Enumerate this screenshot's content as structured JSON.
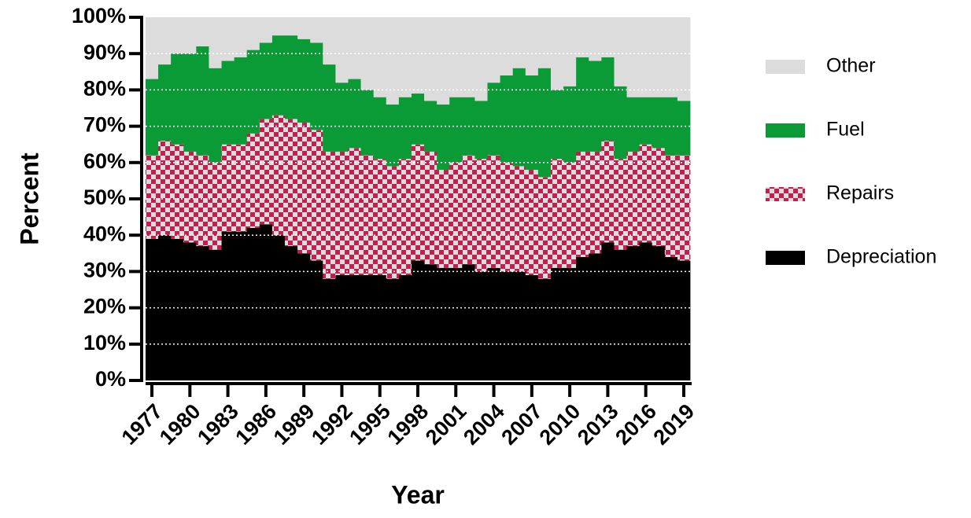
{
  "chart_data": {
    "type": "stacked-bar",
    "x_label": "Year",
    "y_label": "Percent",
    "x": [
      1977,
      1978,
      1979,
      1980,
      1981,
      1982,
      1983,
      1984,
      1985,
      1986,
      1987,
      1988,
      1989,
      1990,
      1991,
      1992,
      1993,
      1994,
      1995,
      1996,
      1997,
      1998,
      1999,
      2000,
      2001,
      2002,
      2003,
      2004,
      2005,
      2006,
      2007,
      2008,
      2009,
      2010,
      2011,
      2012,
      2013,
      2014,
      2015,
      2016,
      2017,
      2018,
      2019
    ],
    "xlim": [
      1976.5,
      2019.5
    ],
    "xticks": [
      1977,
      1980,
      1983,
      1986,
      1989,
      1992,
      1995,
      1998,
      2001,
      2004,
      2007,
      2010,
      2013,
      2016,
      2019
    ],
    "ylim": [
      0,
      100
    ],
    "yticks": [
      {
        "value": 0,
        "label": "0%"
      },
      {
        "value": 10,
        "label": "10%"
      },
      {
        "value": 20,
        "label": "20%"
      },
      {
        "value": 30,
        "label": "30%"
      },
      {
        "value": 40,
        "label": "40%"
      },
      {
        "value": 50,
        "label": "50%"
      },
      {
        "value": 60,
        "label": "60%"
      },
      {
        "value": 70,
        "label": "70%"
      },
      {
        "value": 80,
        "label": "80%"
      },
      {
        "value": 90,
        "label": "90%"
      },
      {
        "value": 100,
        "label": "100%"
      }
    ],
    "grid": true,
    "legend": "right",
    "series": [
      {
        "name": "Depreciation",
        "color": "#000000",
        "values": [
          39,
          40,
          39,
          38,
          37,
          36,
          41,
          41,
          42,
          43,
          40,
          37,
          35,
          33,
          28,
          29,
          29,
          29,
          29,
          28,
          29,
          33,
          32,
          31,
          31,
          32,
          30,
          31,
          30,
          30,
          29,
          28,
          31,
          31,
          34,
          35,
          38,
          36,
          37,
          38,
          37,
          34,
          33
        ]
      },
      {
        "name": "Repairs",
        "color": "#c41e4f",
        "pattern": "checkerboard",
        "values": [
          23,
          26,
          26,
          25,
          25,
          24,
          24,
          24,
          26,
          29,
          33,
          35,
          36,
          36,
          35,
          34,
          35,
          33,
          32,
          31,
          32,
          32,
          31,
          27,
          29,
          30,
          31,
          31,
          30,
          29,
          29,
          28,
          30,
          29,
          29,
          28,
          28,
          25,
          26,
          27,
          27,
          28,
          29
        ]
      },
      {
        "name": "Fuel",
        "color": "#0a9a36",
        "values": [
          21,
          21,
          25,
          27,
          30,
          26,
          23,
          24,
          23,
          21,
          22,
          23,
          23,
          24,
          24,
          19,
          19,
          18,
          17,
          17,
          17,
          14,
          14,
          18,
          18,
          16,
          16,
          20,
          24,
          27,
          26,
          30,
          19,
          21,
          26,
          25,
          23,
          20,
          15,
          13,
          14,
          16,
          15
        ]
      },
      {
        "name": "Other",
        "color": "#dcdcdc",
        "values": [
          17,
          13,
          10,
          10,
          8,
          14,
          12,
          11,
          9,
          7,
          5,
          5,
          6,
          7,
          13,
          18,
          17,
          20,
          22,
          24,
          22,
          21,
          23,
          24,
          22,
          22,
          23,
          18,
          16,
          14,
          16,
          14,
          20,
          19,
          11,
          12,
          11,
          19,
          22,
          22,
          22,
          22,
          23
        ]
      }
    ]
  }
}
